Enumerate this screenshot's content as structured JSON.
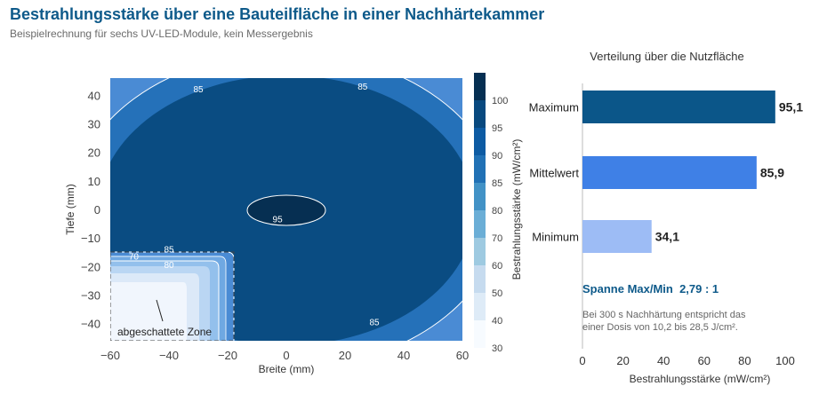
{
  "title": "Bestrahlungsstärke über eine Bauteilfläche in einer Nachhärtekammer",
  "subtitle": "Beispielrechnung für sechs UV-LED-Module, kein Messergebnis",
  "chart_data": [
    {
      "type": "contour",
      "xlabel": "Breite (mm)",
      "ylabel": "Tiefe (mm)",
      "xlim": [
        -60,
        60
      ],
      "ylim": [
        -46,
        46
      ],
      "xticks": [
        -60,
        -40,
        -20,
        0,
        20,
        40,
        60
      ],
      "yticks": [
        -40,
        -30,
        -20,
        -10,
        0,
        10,
        20,
        30,
        40
      ],
      "xtick_labels": [
        "−60",
        "−40",
        "−20",
        "0",
        "20",
        "40",
        "60"
      ],
      "ytick_labels": [
        "−40",
        "−30",
        "−20",
        "−10",
        "0",
        "10",
        "20",
        "30",
        "40"
      ],
      "contour_labels": [
        {
          "text": "85",
          "x": -30,
          "y": 41
        },
        {
          "text": "85",
          "x": 26,
          "y": 42
        },
        {
          "text": "95",
          "x": -3,
          "y": -4.5
        },
        {
          "text": "85",
          "x": -40,
          "y": -15
        },
        {
          "text": "70",
          "x": -52,
          "y": -17.5
        },
        {
          "text": "80",
          "x": -40,
          "y": -20.5
        },
        {
          "text": "85",
          "x": 30,
          "y": -40.5
        }
      ],
      "shaded_zone": {
        "label": "abgeschattete Zone",
        "x": [
          -60,
          -18
        ],
        "y": [
          -46,
          -14
        ]
      },
      "colorbar": {
        "label": "Bestrahlungsstärke (mW/cm²)",
        "ticks": [
          30,
          40,
          50,
          60,
          70,
          80,
          85,
          90,
          95,
          100
        ],
        "levels": [
          30,
          40,
          50,
          60,
          70,
          80,
          85,
          90,
          95,
          100
        ],
        "colors": [
          "#f7fbff",
          "#deebf7",
          "#c6dbef",
          "#9ecae1",
          "#6baed6",
          "#4292c6",
          "#2171b5",
          "#0d5ba3",
          "#08497f",
          "#062f52"
        ]
      }
    },
    {
      "type": "bar",
      "orientation": "horizontal",
      "title": "Verteilung über die Nutzfläche",
      "xlabel": "Bestrahlungsstärke (mW/cm²)",
      "xlim": [
        0,
        100
      ],
      "xticks": [
        0,
        20,
        40,
        60,
        80,
        100
      ],
      "categories": [
        "Maximum",
        "Mittelwert",
        "Minimum"
      ],
      "values": [
        95.1,
        85.9,
        34.1
      ],
      "value_labels": [
        "95,1",
        "85,9",
        "34,1"
      ],
      "colors": [
        "#0b5689",
        "#3f80e6",
        "#9dbcf5"
      ],
      "annotations": {
        "spanne": "Spanne Max/Min  2,79 : 1",
        "note_line1": "Bei 300 s Nachhärtung entspricht das",
        "note_line2": "einer Dosis von 10,2 bis 28,5 J/cm²."
      }
    }
  ]
}
